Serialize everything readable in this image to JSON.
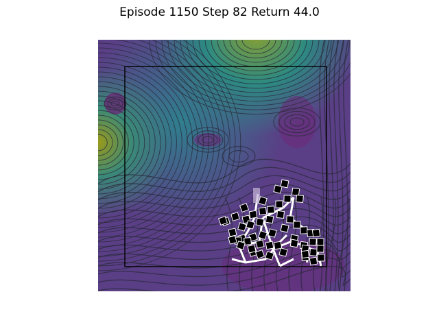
{
  "header": {
    "title": "Episode 1150 Step 82 Return 44.0"
  },
  "scene": {
    "background_colormap": "viridis",
    "contour_line_color": "#2a2a3a",
    "boundary_box_color": "#000000",
    "robot_block_color": "#000000",
    "robot_link_color": "#ffffff"
  }
}
